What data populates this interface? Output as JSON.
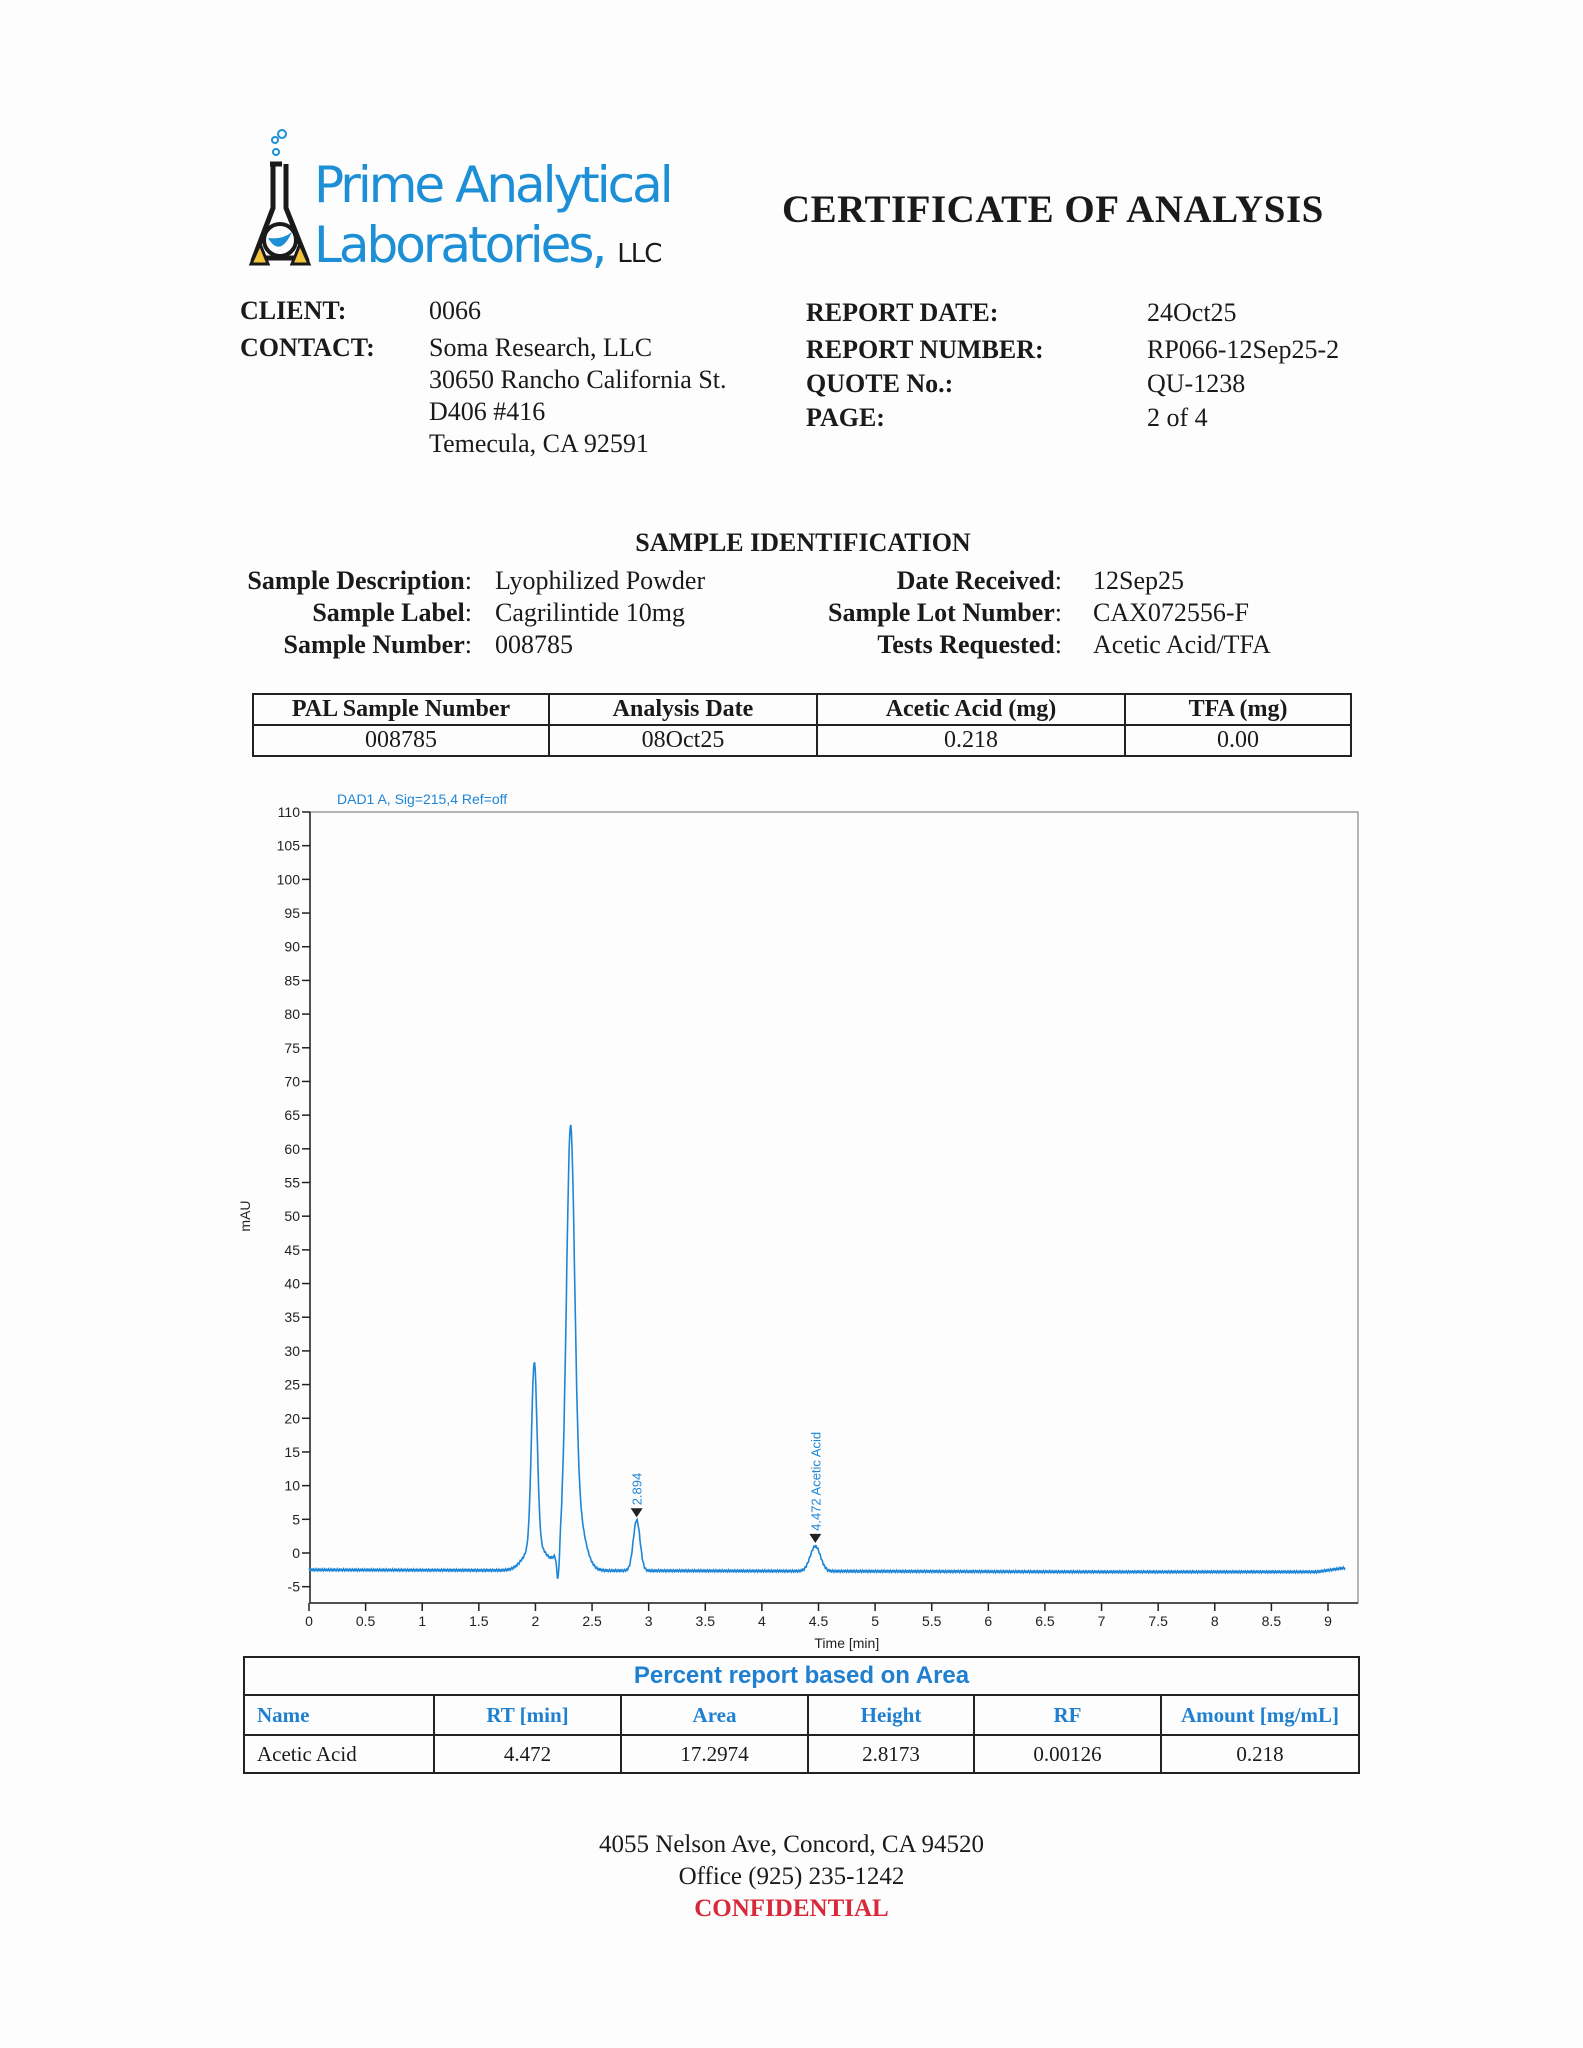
{
  "logo": {
    "line1_a": "Prime",
    "line1_b": "Analytical",
    "line2": "Laboratories,",
    "suffix": "LLC",
    "colors": {
      "blue": "#1c8fd6",
      "black": "#1a1a1a",
      "yellow": "#f2c43c"
    }
  },
  "title": "CERTIFICATE OF ANALYSIS",
  "header": {
    "client_label": "CLIENT:",
    "client": "0066",
    "contact_label": "CONTACT:",
    "contact_lines": [
      "Soma Research, LLC",
      "30650 Rancho California St.",
      "D406 #416",
      "Temecula, CA 92591"
    ],
    "report_date_label": "REPORT DATE:",
    "report_date": "24Oct25",
    "report_number_label": "REPORT NUMBER:",
    "report_number": "RP066-12Sep25-2",
    "quote_label": "QUOTE No.:",
    "quote": "QU-1238",
    "page_label": "PAGE:",
    "page": "2 of 4"
  },
  "sample": {
    "heading": "SAMPLE IDENTIFICATION",
    "left": [
      {
        "label": "Sample Description",
        "value": "Lyophilized Powder"
      },
      {
        "label": "Sample Label",
        "value": "Cagrilintide 10mg"
      },
      {
        "label": "Sample Number",
        "value": "008785"
      }
    ],
    "right": [
      {
        "label": "Date Received",
        "value": "12Sep25"
      },
      {
        "label": "Sample Lot Number",
        "value": "CAX072556-F"
      },
      {
        "label": "Tests Requested",
        "value": "Acetic Acid/TFA"
      }
    ]
  },
  "summary_table": {
    "headers": [
      "PAL Sample Number",
      "Analysis Date",
      "Acetic Acid (mg)",
      "TFA (mg)"
    ],
    "row": [
      "008785",
      "08Oct25",
      "0.218",
      "0.00"
    ]
  },
  "chart_data": {
    "type": "line",
    "title": "DAD1 A, Sig=215,4 Ref=off",
    "xlabel": "Time [min]",
    "ylabel": "mAU",
    "xlim": [
      0,
      9.2
    ],
    "ylim": [
      -7,
      110
    ],
    "xticks": [
      0,
      0.5,
      1,
      1.5,
      2,
      2.5,
      3,
      3.5,
      4,
      4.5,
      5,
      5.5,
      6,
      6.5,
      7,
      7.5,
      8,
      8.5,
      9
    ],
    "yticks": [
      110,
      105,
      100,
      95,
      90,
      85,
      80,
      75,
      70,
      65,
      60,
      55,
      50,
      45,
      40,
      35,
      30,
      25,
      20,
      15,
      10,
      5,
      0,
      -5
    ],
    "grid": false,
    "color": "#1f86d6",
    "baseline": -2.5,
    "peaks": [
      {
        "rt": 1.99,
        "height": 24.5
      },
      {
        "rt": 2.31,
        "height": 52
      },
      {
        "rt": 2.894,
        "height": 5,
        "label": "2.894"
      },
      {
        "rt": 4.472,
        "height": 1.2,
        "label": "4.472 Acetic Acid"
      }
    ]
  },
  "results": {
    "title": "Percent report based on Area",
    "headers": [
      "Name",
      "RT [min]",
      "Area",
      "Height",
      "RF",
      "Amount [mg/mL]"
    ],
    "row": [
      "Acetic Acid",
      "4.472",
      "17.2974",
      "2.8173",
      "0.00126",
      "0.218"
    ]
  },
  "footer": {
    "address": "4055 Nelson Ave, Concord, CA 94520",
    "office": "Office (925) 235-1242",
    "confidential": "CONFIDENTIAL",
    "confidential_color": "#d8293a"
  }
}
